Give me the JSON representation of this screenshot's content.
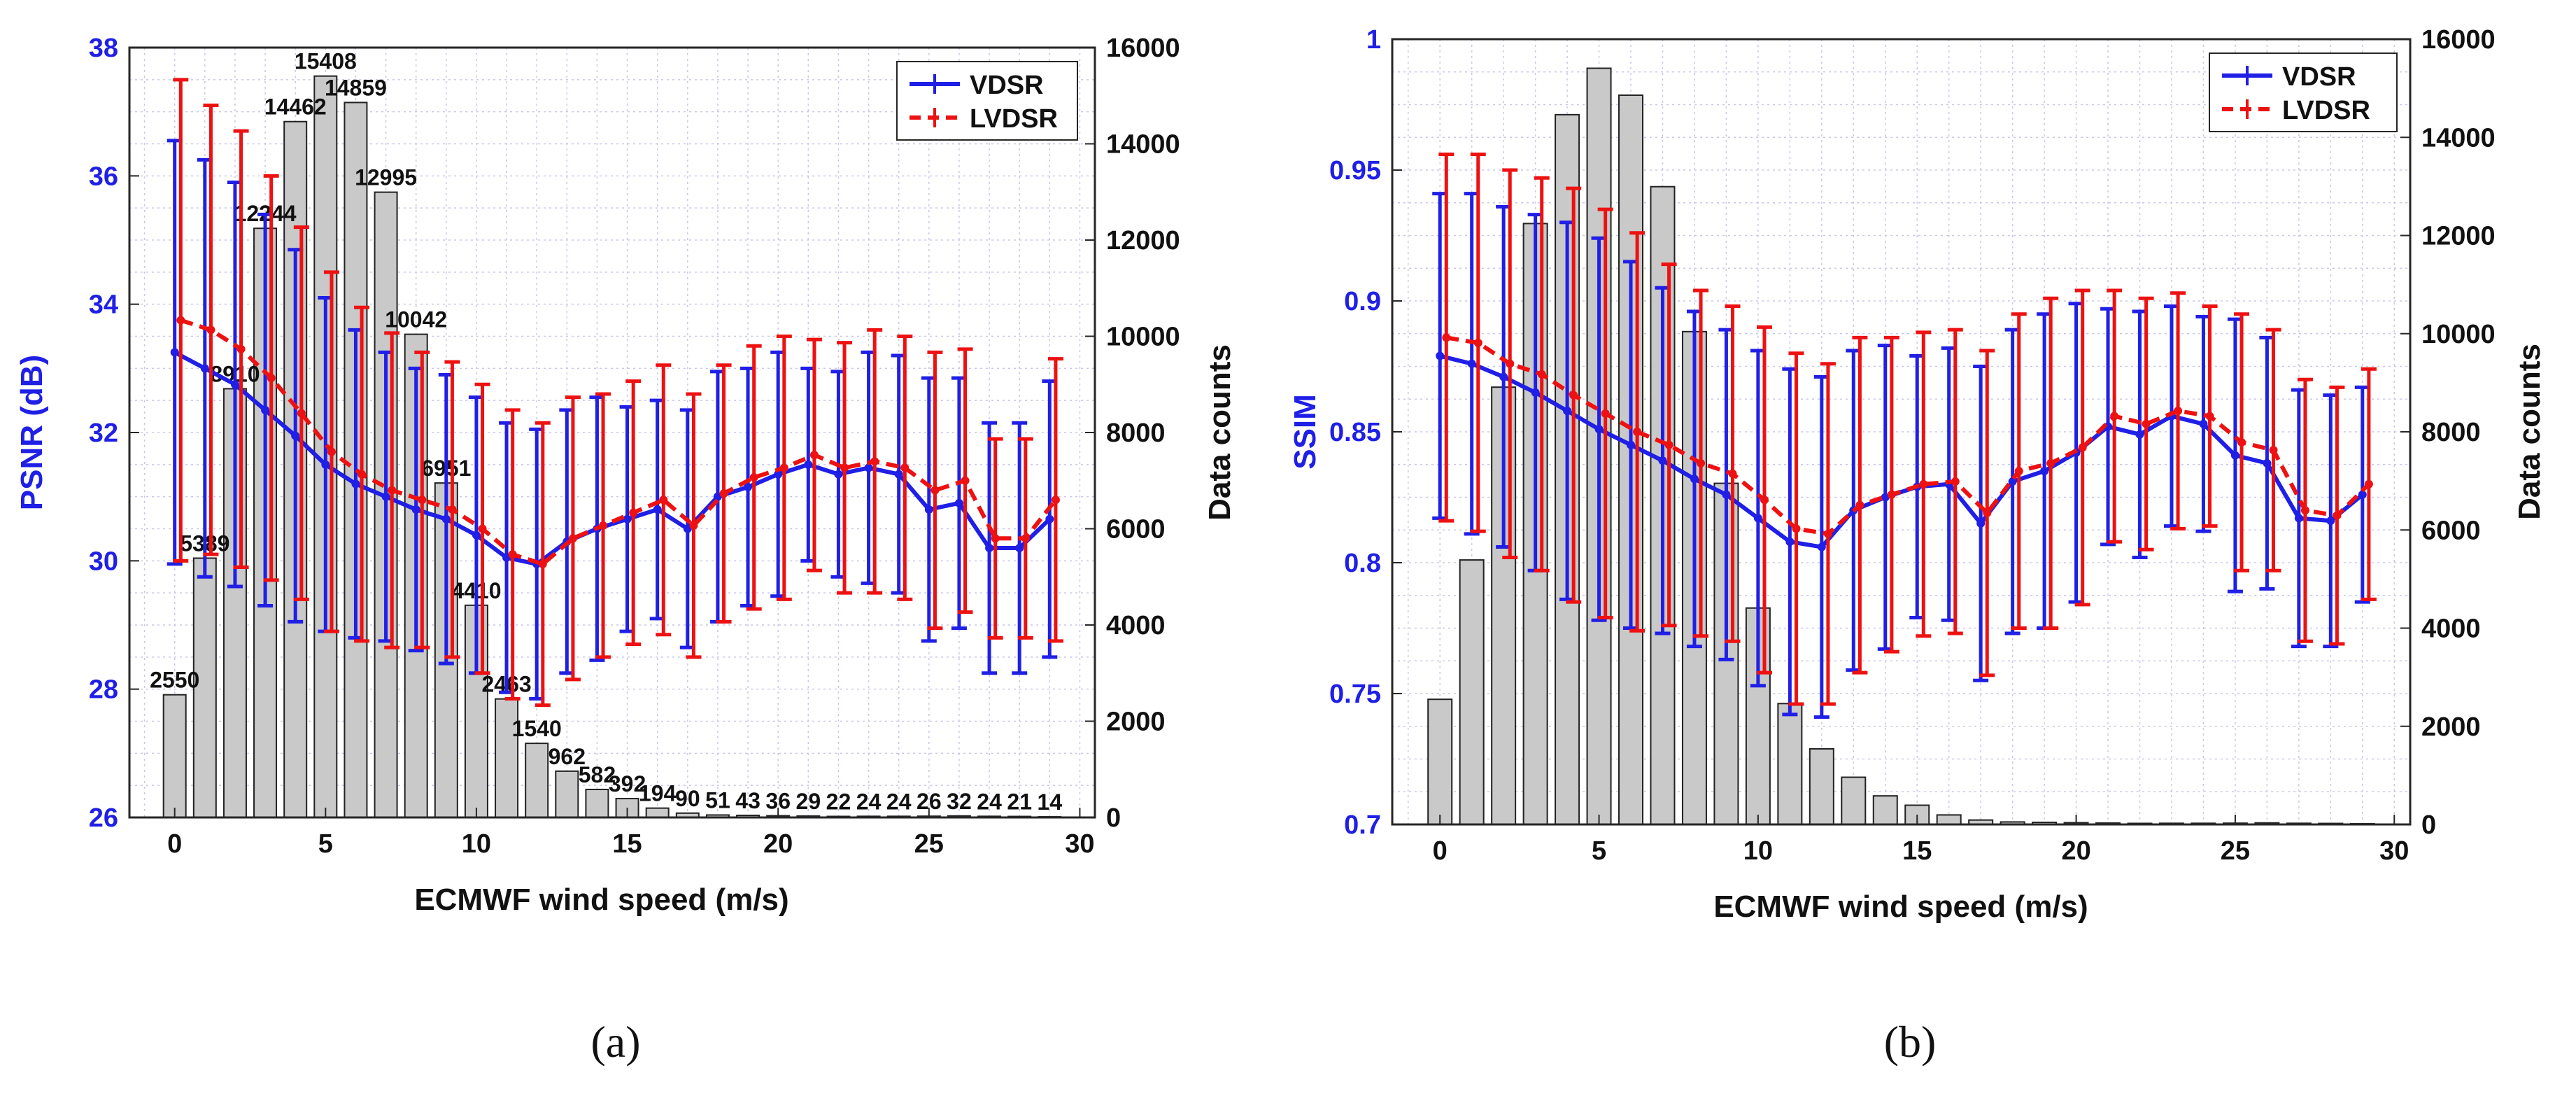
{
  "figure": {
    "captions": [
      "(a)",
      "(b)"
    ]
  },
  "colors": {
    "vdsr": "#1f1fe6",
    "lvdsr": "#ee1111",
    "bar_fill": "#c9c9c9",
    "bar_stroke": "#222222",
    "left_axis": "#1f1fe6",
    "grid": "#c8c8e8"
  },
  "chart_data": [
    {
      "type": "bar+line",
      "title": "",
      "xlabel": "ECMWF wind speed (m/s)",
      "ylabel": "PSNR (dB)",
      "y2label": "Data counts",
      "xlim": [
        -1.5,
        30.5
      ],
      "ylim": [
        26,
        38
      ],
      "y2lim": [
        0,
        16000
      ],
      "xticks": [
        "0",
        "5",
        "10",
        "15",
        "20",
        "25",
        "30"
      ],
      "yticks": [
        "26",
        "28",
        "30",
        "32",
        "34",
        "36",
        "38"
      ],
      "y2ticks": [
        "0",
        "2000",
        "4000",
        "6000",
        "8000",
        "10000",
        "12000",
        "14000",
        "16000"
      ],
      "bar_x": [
        0,
        1,
        2,
        3,
        4,
        5,
        6,
        7,
        8,
        9,
        10,
        11,
        12,
        13,
        14,
        15,
        16,
        17,
        18,
        19,
        20,
        21,
        22,
        23,
        24,
        25,
        26,
        27,
        28,
        29
      ],
      "bar_counts": [
        2550,
        5389,
        8910,
        12244,
        14462,
        15408,
        14859,
        12995,
        10042,
        6951,
        4410,
        2463,
        1540,
        962,
        582,
        392,
        194,
        90,
        51,
        43,
        36,
        29,
        22,
        24,
        24,
        26,
        32,
        24,
        21,
        14
      ],
      "bar_labels": [
        "2550",
        "5389",
        "8910",
        "12244",
        "14462",
        "15408",
        "14859",
        "12995",
        "10042",
        "6951",
        "4410",
        "2463",
        "1540",
        "962",
        "582",
        "392",
        "194",
        "90",
        "51",
        "43",
        "36",
        "29",
        "22",
        "24",
        "24",
        "26",
        "32",
        "24",
        "21",
        "14"
      ],
      "legend": [
        "VDSR",
        "LVDSR"
      ],
      "legend_position": "top-right",
      "series": [
        {
          "name": "VDSR",
          "style": "solid",
          "x": [
            0,
            1,
            2,
            3,
            4,
            5,
            6,
            7,
            8,
            9,
            10,
            11,
            12,
            13,
            14,
            15,
            16,
            17,
            18,
            19,
            20,
            21,
            22,
            23,
            24,
            25,
            26,
            27,
            28,
            29
          ],
          "values": [
            33.25,
            33.0,
            32.75,
            32.35,
            31.95,
            31.5,
            31.2,
            31.0,
            30.8,
            30.65,
            30.4,
            30.05,
            29.95,
            30.3,
            30.5,
            30.65,
            30.8,
            30.5,
            31.0,
            31.15,
            31.35,
            31.5,
            31.35,
            31.45,
            31.35,
            30.8,
            30.9,
            30.2,
            30.2,
            30.65
          ],
          "errors": [
            3.3,
            3.25,
            3.15,
            3.05,
            2.9,
            2.6,
            2.4,
            2.25,
            2.2,
            2.25,
            2.15,
            2.1,
            2.1,
            2.05,
            2.05,
            1.75,
            1.7,
            1.85,
            1.95,
            1.85,
            1.9,
            1.5,
            1.6,
            1.8,
            1.85,
            2.05,
            1.95,
            1.95,
            1.95,
            2.15
          ]
        },
        {
          "name": "LVDSR",
          "x": [
            0.2,
            1.2,
            2.2,
            3.2,
            4.2,
            5.2,
            6.2,
            7.2,
            8.2,
            9.2,
            10.2,
            11.2,
            12.2,
            13.2,
            14.2,
            15.2,
            16.2,
            17.2,
            18.2,
            19.2,
            20.2,
            21.2,
            22.2,
            23.2,
            24.2,
            25.2,
            26.2,
            27.2,
            28.2,
            29.2
          ],
          "style": "dashed",
          "values": [
            33.75,
            33.6,
            33.3,
            32.85,
            32.3,
            31.7,
            31.35,
            31.1,
            30.95,
            30.8,
            30.5,
            30.1,
            29.95,
            30.35,
            30.55,
            30.75,
            30.95,
            30.55,
            31.05,
            31.3,
            31.45,
            31.65,
            31.45,
            31.55,
            31.45,
            31.1,
            31.25,
            30.35,
            30.35,
            30.95
          ],
          "errors": [
            3.75,
            3.5,
            3.4,
            3.15,
            2.9,
            2.8,
            2.6,
            2.45,
            2.3,
            2.3,
            2.25,
            2.25,
            2.2,
            2.2,
            2.05,
            2.05,
            2.1,
            2.05,
            2.0,
            2.05,
            2.05,
            1.8,
            1.95,
            2.05,
            2.05,
            2.15,
            2.05,
            1.55,
            1.55,
            2.2
          ]
        }
      ]
    },
    {
      "type": "bar+line",
      "title": "",
      "xlabel": "ECMWF wind speed (m/s)",
      "ylabel": "SSIM",
      "y2label": "Data counts",
      "xlim": [
        -1.5,
        30.5
      ],
      "ylim": [
        0.7,
        1.0
      ],
      "y2lim": [
        0,
        16000
      ],
      "xticks": [
        "0",
        "5",
        "10",
        "15",
        "20",
        "25",
        "30"
      ],
      "yticks": [
        "0.7",
        "0.75",
        "0.8",
        "0.85",
        "0.9",
        "0.95",
        "1"
      ],
      "y2ticks": [
        "0",
        "2000",
        "4000",
        "6000",
        "8000",
        "10000",
        "12000",
        "14000",
        "16000"
      ],
      "bar_x": [
        0,
        1,
        2,
        3,
        4,
        5,
        6,
        7,
        8,
        9,
        10,
        11,
        12,
        13,
        14,
        15,
        16,
        17,
        18,
        19,
        20,
        21,
        22,
        23,
        24,
        25,
        26,
        27,
        28,
        29
      ],
      "bar_counts": [
        2550,
        5389,
        8910,
        12244,
        14462,
        15408,
        14859,
        12995,
        10042,
        6951,
        4410,
        2463,
        1540,
        962,
        582,
        392,
        194,
        90,
        51,
        43,
        36,
        29,
        22,
        24,
        24,
        26,
        32,
        24,
        21,
        14
      ],
      "legend": [
        "VDSR",
        "LVDSR"
      ],
      "legend_position": "top-right",
      "series": [
        {
          "name": "VDSR",
          "style": "solid",
          "x": [
            0,
            1,
            2,
            3,
            4,
            5,
            6,
            7,
            8,
            9,
            10,
            11,
            12,
            13,
            14,
            15,
            16,
            17,
            18,
            19,
            20,
            21,
            22,
            23,
            24,
            25,
            26,
            27,
            28,
            29
          ],
          "values": [
            0.879,
            0.876,
            0.871,
            0.865,
            0.858,
            0.851,
            0.845,
            0.839,
            0.832,
            0.826,
            0.817,
            0.808,
            0.806,
            0.82,
            0.825,
            0.829,
            0.83,
            0.815,
            0.831,
            0.835,
            0.842,
            0.852,
            0.849,
            0.856,
            0.853,
            0.841,
            0.838,
            0.817,
            0.816,
            0.826
          ],
          "errors": [
            0.062,
            0.065,
            0.065,
            0.068,
            0.072,
            0.073,
            0.07,
            0.066,
            0.064,
            0.063,
            0.064,
            0.066,
            0.065,
            0.061,
            0.058,
            0.05,
            0.052,
            0.06,
            0.058,
            0.06,
            0.057,
            0.045,
            0.047,
            0.042,
            0.041,
            0.052,
            0.048,
            0.049,
            0.048,
            0.041
          ]
        },
        {
          "name": "LVDSR",
          "style": "dashed",
          "x": [
            0.2,
            1.2,
            2.2,
            3.2,
            4.2,
            5.2,
            6.2,
            7.2,
            8.2,
            9.2,
            10.2,
            11.2,
            12.2,
            13.2,
            14.2,
            15.2,
            16.2,
            17.2,
            18.2,
            19.2,
            20.2,
            21.2,
            22.2,
            23.2,
            24.2,
            25.2,
            26.2,
            27.2,
            28.2,
            29.2
          ],
          "values": [
            0.886,
            0.884,
            0.876,
            0.872,
            0.864,
            0.857,
            0.85,
            0.845,
            0.838,
            0.834,
            0.824,
            0.813,
            0.811,
            0.822,
            0.826,
            0.83,
            0.831,
            0.819,
            0.835,
            0.838,
            0.844,
            0.856,
            0.853,
            0.858,
            0.856,
            0.846,
            0.843,
            0.82,
            0.818,
            0.83
          ],
          "errors": [
            0.07,
            0.072,
            0.074,
            0.075,
            0.079,
            0.078,
            0.076,
            0.069,
            0.066,
            0.064,
            0.066,
            0.067,
            0.065,
            0.064,
            0.06,
            0.058,
            0.058,
            0.062,
            0.06,
            0.063,
            0.06,
            0.048,
            0.048,
            0.045,
            0.042,
            0.049,
            0.046,
            0.05,
            0.049,
            0.044
          ]
        }
      ]
    }
  ]
}
